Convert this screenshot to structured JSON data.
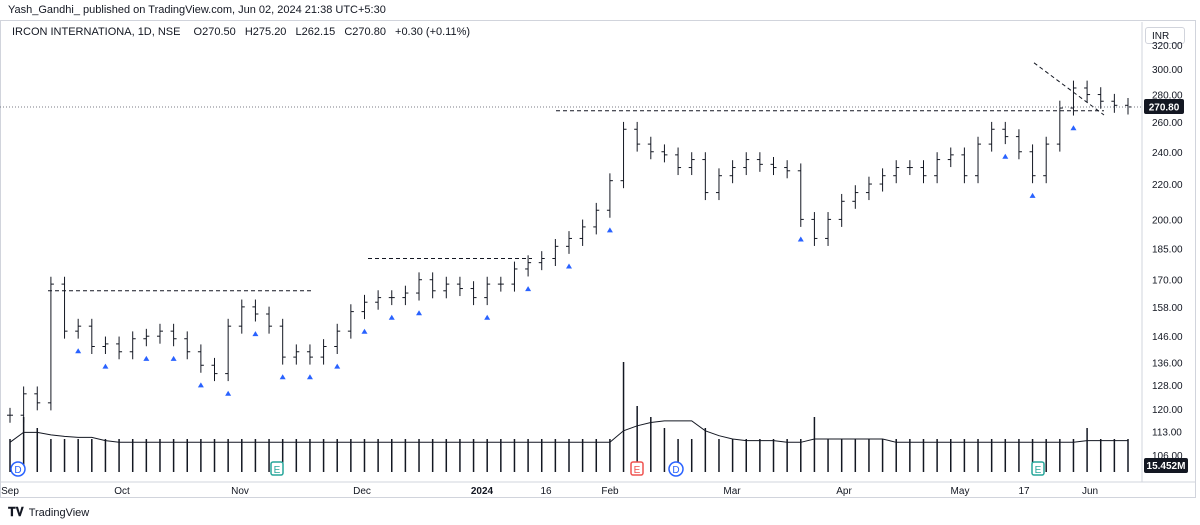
{
  "header": {
    "publisher_line": "Yash_Gandhi_ published on TradingView.com, Jun 02, 2024 21:38 UTC+5:30"
  },
  "legend": {
    "symbol": "IRCON INTERNATIONA, 1D, NSE",
    "open_label": "O",
    "open": "270.50",
    "high_label": "H",
    "high": "275.20",
    "low_label": "L",
    "low": "262.15",
    "close_label": "C",
    "close": "270.80",
    "change": "+0.30 (+0.11%)"
  },
  "currency_button": "INR",
  "price_label": "270.80",
  "volume_label": "15.452M",
  "footer": {
    "brand": "TradingView"
  },
  "colors": {
    "bars": "#131722",
    "volume": "#131722",
    "markers": "#2962ff",
    "event_earnings": "#26a69a",
    "event_dividend": "#2962ff",
    "event_split": "#ef5350",
    "price_tag_bg": "#131722"
  },
  "chart_data": {
    "type": "ohlc-bar",
    "scale": "log",
    "y_ticks": [
      "320.00",
      "300.00",
      "280.00",
      "260.00",
      "240.00",
      "220.00",
      "200.00",
      "185.00",
      "170.00",
      "158.00",
      "146.00",
      "136.00",
      "128.00",
      "120.00",
      "113.00",
      "106.00"
    ],
    "x_ticks": [
      "Sep",
      "Oct",
      "Nov",
      "Dec",
      "2024",
      "16",
      "Feb",
      "Mar",
      "Apr",
      "May",
      "17",
      "Jun"
    ],
    "series": [
      {
        "name": "price",
        "values_close": [
          118,
          125,
          122,
          168,
          148,
          150,
          142,
          143,
          140,
          145,
          146,
          148,
          145,
          140,
          135,
          132,
          150,
          158,
          155,
          150,
          138,
          140,
          138,
          142,
          148,
          156,
          160,
          162,
          162,
          164,
          170,
          165,
          168,
          166,
          162,
          168,
          168,
          175,
          178,
          180,
          186,
          190,
          196,
          205,
          222,
          255,
          245,
          240,
          238,
          230,
          235,
          215,
          225,
          230,
          235,
          232,
          230,
          228,
          200,
          190,
          200,
          210,
          215,
          220,
          225,
          230,
          230,
          225,
          235,
          238,
          225,
          245,
          255,
          250,
          240,
          225,
          245,
          270,
          285,
          280,
          275,
          272,
          270.8
        ]
      },
      {
        "name": "volume",
        "values": [
          0.3,
          0.5,
          0.4,
          0.3,
          0.3,
          0.3,
          0.3,
          0.3,
          0.3,
          0.3,
          0.3,
          0.3,
          0.3,
          0.3,
          0.3,
          0.3,
          0.3,
          0.3,
          0.3,
          0.3,
          0.3,
          0.3,
          0.3,
          0.3,
          0.3,
          0.3,
          0.3,
          0.3,
          0.3,
          0.3,
          0.3,
          0.3,
          0.3,
          0.3,
          0.3,
          0.3,
          0.3,
          0.3,
          0.3,
          0.3,
          0.3,
          0.3,
          0.3,
          0.3,
          0.3,
          1.0,
          0.6,
          0.5,
          0.4,
          0.3,
          0.3,
          0.4,
          0.3,
          0.3,
          0.3,
          0.3,
          0.3,
          0.3,
          0.3,
          0.5,
          0.3,
          0.3,
          0.3,
          0.3,
          0.3,
          0.3,
          0.3,
          0.3,
          0.3,
          0.3,
          0.3,
          0.3,
          0.3,
          0.3,
          0.3,
          0.3,
          0.3,
          0.3,
          0.3,
          0.4,
          0.3,
          0.3,
          0.3
        ]
      }
    ],
    "annotations": [
      {
        "type": "horizontal-dashed",
        "price": 165,
        "label": ""
      },
      {
        "type": "horizontal-dashed",
        "price": 180,
        "label": ""
      },
      {
        "type": "horizontal-dashed",
        "price": 268,
        "label": ""
      },
      {
        "type": "descending-dashed",
        "from": 305,
        "to": 265,
        "label": ""
      }
    ],
    "last_price": 270.8,
    "last_volume": "15.452M",
    "event_markers": [
      {
        "kind": "D"
      },
      {
        "kind": "E"
      },
      {
        "kind": "E"
      },
      {
        "kind": "D"
      },
      {
        "kind": "E"
      }
    ],
    "grid": false
  }
}
